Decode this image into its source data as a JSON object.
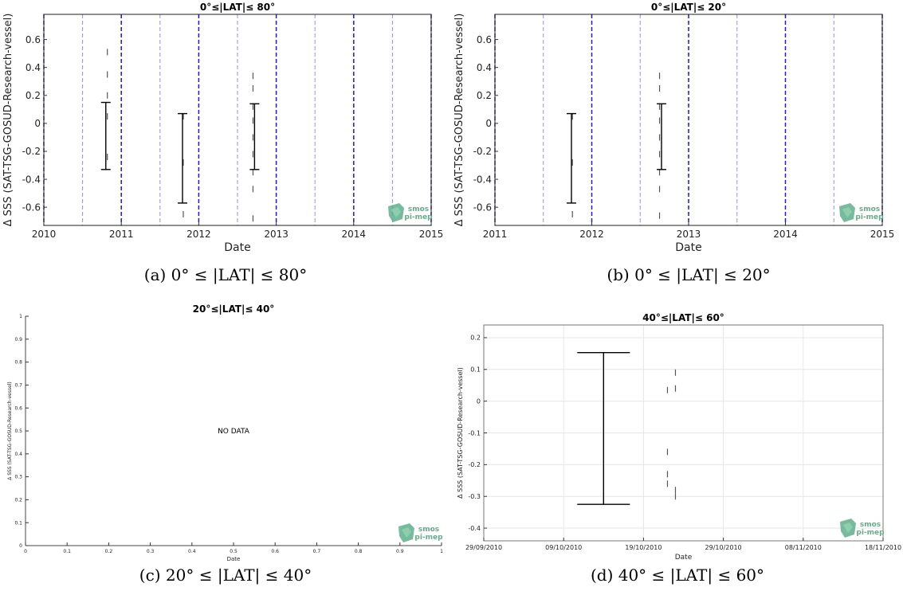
{
  "panels": [
    {
      "caption": "(a) 0° ≤ |LAT| ≤ 80°",
      "logo": {
        "line1": "smos",
        "line2": "pi-mep"
      },
      "chart_data": {
        "type": "scatter",
        "title": "0°≤|LAT|≤ 80°",
        "xlabel": "Date",
        "ylabel": "Δ SSS (SAT-TSG-GOSUD-Research-vessel)",
        "xlim": [
          2010,
          2015
        ],
        "ylim": [
          -0.73,
          0.78
        ],
        "x_ticks": [
          "2010",
          "2011",
          "2012",
          "2013",
          "2014",
          "2015"
        ],
        "y_ticks": [
          "-0.6",
          "-0.4",
          "-0.2",
          "0",
          "0.2",
          "0.4",
          "0.6"
        ],
        "year_lines": [
          2010,
          2011,
          2012,
          2013,
          2014,
          2015
        ],
        "half_year_lines": [
          2010.5,
          2011.5,
          2012.5,
          2013.5,
          2014.5
        ],
        "error_bars": [
          {
            "x": 2010.8,
            "low": -0.33,
            "high": 0.15
          },
          {
            "x": 2011.79,
            "low": -0.57,
            "high": 0.07
          },
          {
            "x": 2012.72,
            "low": -0.33,
            "high": 0.14
          }
        ],
        "points": [
          {
            "x": 2010.82,
            "y": 0.51
          },
          {
            "x": 2010.82,
            "y": 0.35
          },
          {
            "x": 2010.82,
            "y": 0.2
          },
          {
            "x": 2010.82,
            "y": 0.05
          },
          {
            "x": 2010.82,
            "y": -0.24
          },
          {
            "x": 2011.8,
            "y": 0.05
          },
          {
            "x": 2011.8,
            "y": -0.28
          },
          {
            "x": 2011.8,
            "y": -0.65
          },
          {
            "x": 2012.7,
            "y": 0.34
          },
          {
            "x": 2012.7,
            "y": 0.25
          },
          {
            "x": 2012.7,
            "y": 0.12
          },
          {
            "x": 2012.7,
            "y": 0.02
          },
          {
            "x": 2012.7,
            "y": -0.1
          },
          {
            "x": 2012.7,
            "y": -0.22
          },
          {
            "x": 2012.7,
            "y": -0.35
          },
          {
            "x": 2012.7,
            "y": -0.47
          },
          {
            "x": 2012.7,
            "y": -0.68
          }
        ]
      }
    },
    {
      "caption": "(b) 0° ≤ |LAT| ≤ 20°",
      "logo": {
        "line1": "smos",
        "line2": "pi-mep"
      },
      "chart_data": {
        "type": "scatter",
        "title": "0°≤|LAT|≤ 20°",
        "xlabel": "Date",
        "ylabel": "Δ SSS (SAT-TSG-GOSUD-Research-vessel)",
        "xlim": [
          2011,
          2015
        ],
        "ylim": [
          -0.73,
          0.78
        ],
        "x_ticks": [
          "2011",
          "2012",
          "2013",
          "2014",
          "2015"
        ],
        "y_ticks": [
          "-0.6",
          "-0.4",
          "-0.2",
          "0",
          "0.2",
          "0.4",
          "0.6"
        ],
        "year_lines": [
          2011,
          2012,
          2013,
          2014,
          2015
        ],
        "half_year_lines": [
          2011.5,
          2012.5,
          2013.5,
          2014.5
        ],
        "error_bars": [
          {
            "x": 2011.79,
            "low": -0.57,
            "high": 0.07
          },
          {
            "x": 2012.72,
            "low": -0.33,
            "high": 0.14
          }
        ],
        "points": [
          {
            "x": 2011.8,
            "y": 0.05
          },
          {
            "x": 2011.8,
            "y": -0.28
          },
          {
            "x": 2011.8,
            "y": -0.65
          },
          {
            "x": 2012.7,
            "y": 0.34
          },
          {
            "x": 2012.7,
            "y": 0.25
          },
          {
            "x": 2012.7,
            "y": 0.12
          },
          {
            "x": 2012.7,
            "y": 0.02
          },
          {
            "x": 2012.7,
            "y": -0.1
          },
          {
            "x": 2012.7,
            "y": -0.22
          },
          {
            "x": 2012.7,
            "y": -0.35
          },
          {
            "x": 2012.7,
            "y": -0.47
          },
          {
            "x": 2012.7,
            "y": -0.66
          }
        ]
      }
    },
    {
      "caption": "(c) 20° ≤ |LAT| ≤ 40°",
      "logo": {
        "line1": "smos",
        "line2": "pi-mep"
      },
      "chart_data": {
        "type": "scatter",
        "title": "20°≤|LAT|≤ 40°",
        "xlabel": "Date",
        "ylabel": "Δ SSS (SAT-TSG-GOSUD-Research-vessel)",
        "xlim": [
          0,
          1
        ],
        "ylim": [
          0,
          1
        ],
        "x_ticks": [
          "0",
          "0.1",
          "0.2",
          "0.3",
          "0.4",
          "0.5",
          "0.6",
          "0.7",
          "0.8",
          "0.9",
          "1"
        ],
        "y_ticks": [
          "0",
          "0.1",
          "0.2",
          "0.3",
          "0.4",
          "0.5",
          "0.6",
          "0.7",
          "0.8",
          "0.9",
          "1"
        ],
        "annotation": "NO DATA",
        "points": []
      }
    },
    {
      "caption": "(d) 40° ≤ |LAT| ≤ 60°",
      "logo": {
        "line1": "smos",
        "line2": "pi-mep"
      },
      "chart_data": {
        "type": "scatter",
        "title": "40°≤|LAT|≤ 60°",
        "xlabel": "Date",
        "ylabel": "Δ SSS (SAT-TSG-GOSUD-Research-vessel)",
        "xlim": [
          "2010-09-29",
          "2010-11-18"
        ],
        "ylim": [
          -0.44,
          0.24
        ],
        "x_ticks": [
          "29/09/2010",
          "09/10/2010",
          "19/10/2010",
          "29/10/2010",
          "08/11/2010",
          "18/11/2010"
        ],
        "y_ticks": [
          "-0.4",
          "-0.3",
          "-0.2",
          "-0.1",
          "0",
          "0.1",
          "0.2"
        ],
        "grid": true,
        "error_bars": [
          {
            "x": "2010-10-14",
            "low": -0.325,
            "high": 0.153
          }
        ],
        "points": [
          {
            "x": "2010-10-23",
            "y": 0.09
          },
          {
            "x": "2010-10-23",
            "y": 0.04
          },
          {
            "x": "2010-10-22",
            "y": 0.035
          },
          {
            "x": "2010-10-22",
            "y": -0.16
          },
          {
            "x": "2010-10-22",
            "y": -0.23
          },
          {
            "x": "2010-10-22",
            "y": -0.26
          },
          {
            "x": "2010-10-23",
            "y": -0.28
          },
          {
            "x": "2010-10-23",
            "y": -0.3
          }
        ]
      }
    }
  ]
}
